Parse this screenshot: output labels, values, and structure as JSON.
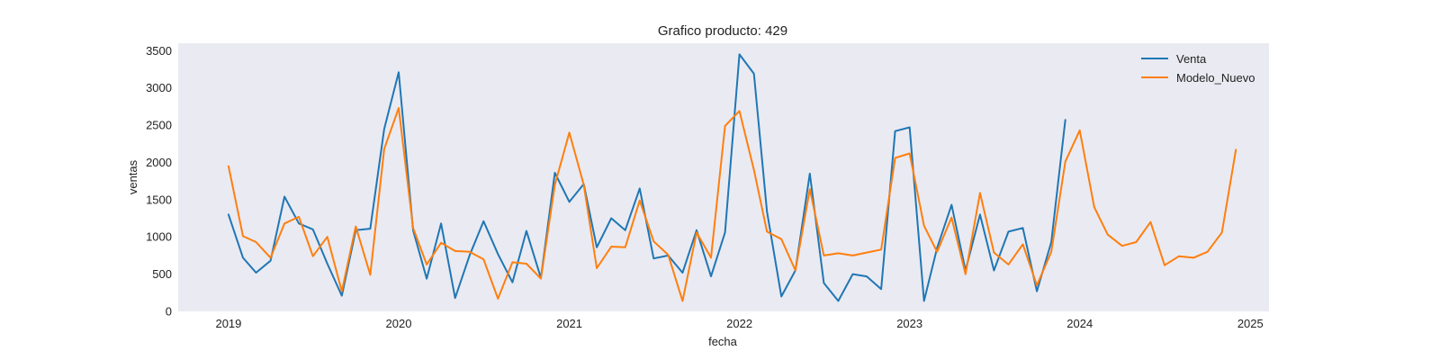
{
  "chart_data": {
    "type": "line",
    "title": "Grafico producto: 429",
    "xlabel": "fecha",
    "ylabel": "ventas",
    "xlim": [
      "2018-09-15",
      "2025-02-10"
    ],
    "ylim": [
      0,
      3600
    ],
    "xticks": [
      {
        "label": "2019",
        "date": "2019-01-01"
      },
      {
        "label": "2020",
        "date": "2020-01-01"
      },
      {
        "label": "2021",
        "date": "2021-01-01"
      },
      {
        "label": "2022",
        "date": "2022-01-01"
      },
      {
        "label": "2023",
        "date": "2023-01-01"
      },
      {
        "label": "2024",
        "date": "2024-01-01"
      },
      {
        "label": "2025",
        "date": "2025-01-01"
      }
    ],
    "yticks": [
      0,
      500,
      1000,
      1500,
      2000,
      2500,
      3000,
      3500
    ],
    "grid": false,
    "legend_position": "top-right",
    "series": [
      {
        "name": "Venta",
        "color": "#1f77b4",
        "x": [
          "2019-01",
          "2019-02",
          "2019-03",
          "2019-04",
          "2019-05",
          "2019-06",
          "2019-07",
          "2019-08",
          "2019-09",
          "2019-10",
          "2019-11",
          "2019-12",
          "2020-01",
          "2020-02",
          "2020-03",
          "2020-04",
          "2020-05",
          "2020-06",
          "2020-07",
          "2020-08",
          "2020-09",
          "2020-10",
          "2020-11",
          "2020-12",
          "2021-01",
          "2021-02",
          "2021-03",
          "2021-04",
          "2021-05",
          "2021-06",
          "2021-07",
          "2021-08",
          "2021-09",
          "2021-10",
          "2021-11",
          "2021-12",
          "2022-01",
          "2022-02",
          "2022-03",
          "2022-04",
          "2022-05",
          "2022-06",
          "2022-07",
          "2022-08",
          "2022-09",
          "2022-10",
          "2022-11",
          "2022-12",
          "2023-01",
          "2023-02",
          "2023-03",
          "2023-04",
          "2023-05",
          "2023-06",
          "2023-07",
          "2023-08",
          "2023-09",
          "2023-10",
          "2023-11",
          "2023-12"
        ],
        "values": [
          1300,
          720,
          520,
          680,
          1540,
          1180,
          1100,
          640,
          210,
          1090,
          1110,
          2450,
          3210,
          1090,
          440,
          1180,
          180,
          750,
          1210,
          770,
          390,
          1080,
          450,
          1860,
          1470,
          1710,
          860,
          1250,
          1090,
          1650,
          710,
          750,
          520,
          1090,
          470,
          1060,
          3450,
          3190,
          1340,
          200,
          550,
          1850,
          380,
          140,
          500,
          470,
          300,
          2420,
          2470,
          140,
          850,
          1430,
          550,
          1300,
          550,
          1070,
          1120,
          270,
          930,
          2570
        ]
      },
      {
        "name": "Modelo_Nuevo",
        "color": "#ff7f0e",
        "x": [
          "2019-01",
          "2019-02",
          "2019-03",
          "2019-04",
          "2019-05",
          "2019-06",
          "2019-07",
          "2019-08",
          "2019-09",
          "2019-10",
          "2019-11",
          "2019-12",
          "2020-01",
          "2020-02",
          "2020-03",
          "2020-04",
          "2020-05",
          "2020-06",
          "2020-07",
          "2020-08",
          "2020-09",
          "2020-10",
          "2020-11",
          "2020-12",
          "2021-01",
          "2021-02",
          "2021-03",
          "2021-04",
          "2021-05",
          "2021-06",
          "2021-07",
          "2021-08",
          "2021-09",
          "2021-10",
          "2021-11",
          "2021-12",
          "2022-01",
          "2022-02",
          "2022-03",
          "2022-04",
          "2022-05",
          "2022-06",
          "2022-07",
          "2022-08",
          "2022-09",
          "2022-10",
          "2022-11",
          "2022-12",
          "2023-01",
          "2023-02",
          "2023-03",
          "2023-04",
          "2023-05",
          "2023-06",
          "2023-07",
          "2023-08",
          "2023-09",
          "2023-10",
          "2023-11",
          "2023-12",
          "2024-01",
          "2024-02",
          "2024-03",
          "2024-04",
          "2024-05",
          "2024-06",
          "2024-07",
          "2024-08",
          "2024-09",
          "2024-10",
          "2024-11",
          "2024-12"
        ],
        "values": [
          1950,
          1010,
          930,
          720,
          1180,
          1270,
          740,
          1000,
          270,
          1140,
          490,
          2180,
          2730,
          1120,
          630,
          920,
          810,
          800,
          700,
          170,
          660,
          640,
          440,
          1700,
          2400,
          1700,
          580,
          870,
          860,
          1490,
          940,
          760,
          140,
          1060,
          720,
          2490,
          2690,
          1900,
          1070,
          970,
          550,
          1640,
          750,
          780,
          750,
          790,
          830,
          2060,
          2120,
          1150,
          800,
          1260,
          500,
          1590,
          790,
          630,
          900,
          350,
          800,
          2010,
          2430,
          1400,
          1030,
          880,
          930,
          1200,
          620,
          740,
          720,
          800,
          1060,
          2170
        ]
      }
    ]
  }
}
